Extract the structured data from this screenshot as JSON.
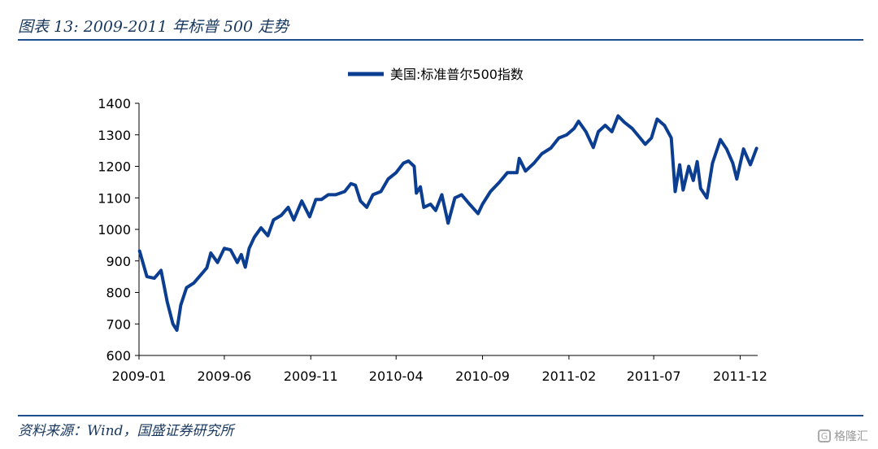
{
  "header": {
    "title": "图表 13:  2009-2011 年标普 500 走势"
  },
  "footer": {
    "source": "资料来源：Wind，国盛证券研究所",
    "watermark": "格隆汇"
  },
  "colors": {
    "series": "#0b3d91",
    "rule": "#1f4e8c",
    "title": "#17375e"
  },
  "chart_data": {
    "type": "line",
    "title": "",
    "xlabel": "",
    "ylabel": "",
    "ylim": [
      600,
      1400
    ],
    "yticks": [
      600,
      700,
      800,
      900,
      1000,
      1100,
      1200,
      1300,
      1400
    ],
    "xlim": [
      "2009-01",
      "2012-01"
    ],
    "xticks": [
      "2009-01",
      "2009-06",
      "2009-11",
      "2010-04",
      "2010-09",
      "2011-02",
      "2011-07",
      "2011-12"
    ],
    "grid": false,
    "legend": "top-center",
    "series": [
      {
        "name": "美国:标准普尔500指数",
        "x": [
          "2009-01-02",
          "2009-01-15",
          "2009-01-28",
          "2009-02-09",
          "2009-02-20",
          "2009-03-02",
          "2009-03-09",
          "2009-03-16",
          "2009-03-26",
          "2009-04-08",
          "2009-04-20",
          "2009-05-01",
          "2009-05-08",
          "2009-05-20",
          "2009-06-01",
          "2009-06-12",
          "2009-06-24",
          "2009-07-01",
          "2009-07-08",
          "2009-07-15",
          "2009-07-24",
          "2009-08-05",
          "2009-08-17",
          "2009-08-27",
          "2009-09-10",
          "2009-09-22",
          "2009-10-02",
          "2009-10-16",
          "2009-10-30",
          "2009-11-10",
          "2009-11-20",
          "2009-12-02",
          "2009-12-15",
          "2009-12-31",
          "2010-01-11",
          "2010-01-19",
          "2010-01-28",
          "2010-02-08",
          "2010-02-19",
          "2010-03-05",
          "2010-03-18",
          "2010-04-01",
          "2010-04-14",
          "2010-04-23",
          "2010-05-03",
          "2010-05-07",
          "2010-05-14",
          "2010-05-20",
          "2010-06-01",
          "2010-06-10",
          "2010-06-21",
          "2010-07-02",
          "2010-07-14",
          "2010-07-26",
          "2010-08-09",
          "2010-08-24",
          "2010-09-01",
          "2010-09-15",
          "2010-10-01",
          "2010-10-15",
          "2010-11-01",
          "2010-11-05",
          "2010-11-16",
          "2010-12-01",
          "2010-12-15",
          "2010-12-31",
          "2011-01-14",
          "2011-01-28",
          "2011-02-10",
          "2011-02-18",
          "2011-03-03",
          "2011-03-16",
          "2011-03-25",
          "2011-04-06",
          "2011-04-18",
          "2011-04-29",
          "2011-05-10",
          "2011-05-24",
          "2011-06-07",
          "2011-06-16",
          "2011-06-27",
          "2011-07-07",
          "2011-07-20",
          "2011-08-01",
          "2011-08-08",
          "2011-08-16",
          "2011-08-22",
          "2011-09-01",
          "2011-09-09",
          "2011-09-16",
          "2011-09-22",
          "2011-10-03",
          "2011-10-13",
          "2011-10-27",
          "2011-11-07",
          "2011-11-18",
          "2011-11-25",
          "2011-12-07",
          "2011-12-19",
          "2011-12-30"
        ],
        "values": [
          931,
          850,
          845,
          870,
          770,
          700,
          680,
          760,
          815,
          830,
          855,
          878,
          925,
          895,
          940,
          935,
          895,
          920,
          880,
          940,
          975,
          1005,
          980,
          1030,
          1045,
          1070,
          1030,
          1090,
          1040,
          1095,
          1095,
          1110,
          1110,
          1120,
          1145,
          1140,
          1090,
          1070,
          1110,
          1120,
          1160,
          1180,
          1210,
          1217,
          1200,
          1115,
          1135,
          1070,
          1080,
          1060,
          1110,
          1020,
          1100,
          1110,
          1080,
          1050,
          1080,
          1120,
          1150,
          1180,
          1180,
          1225,
          1185,
          1210,
          1240,
          1258,
          1290,
          1300,
          1320,
          1343,
          1310,
          1260,
          1310,
          1330,
          1310,
          1360,
          1340,
          1320,
          1290,
          1270,
          1290,
          1350,
          1330,
          1290,
          1120,
          1205,
          1125,
          1200,
          1155,
          1215,
          1130,
          1100,
          1210,
          1285,
          1255,
          1210,
          1160,
          1255,
          1205,
          1257
        ]
      }
    ]
  }
}
